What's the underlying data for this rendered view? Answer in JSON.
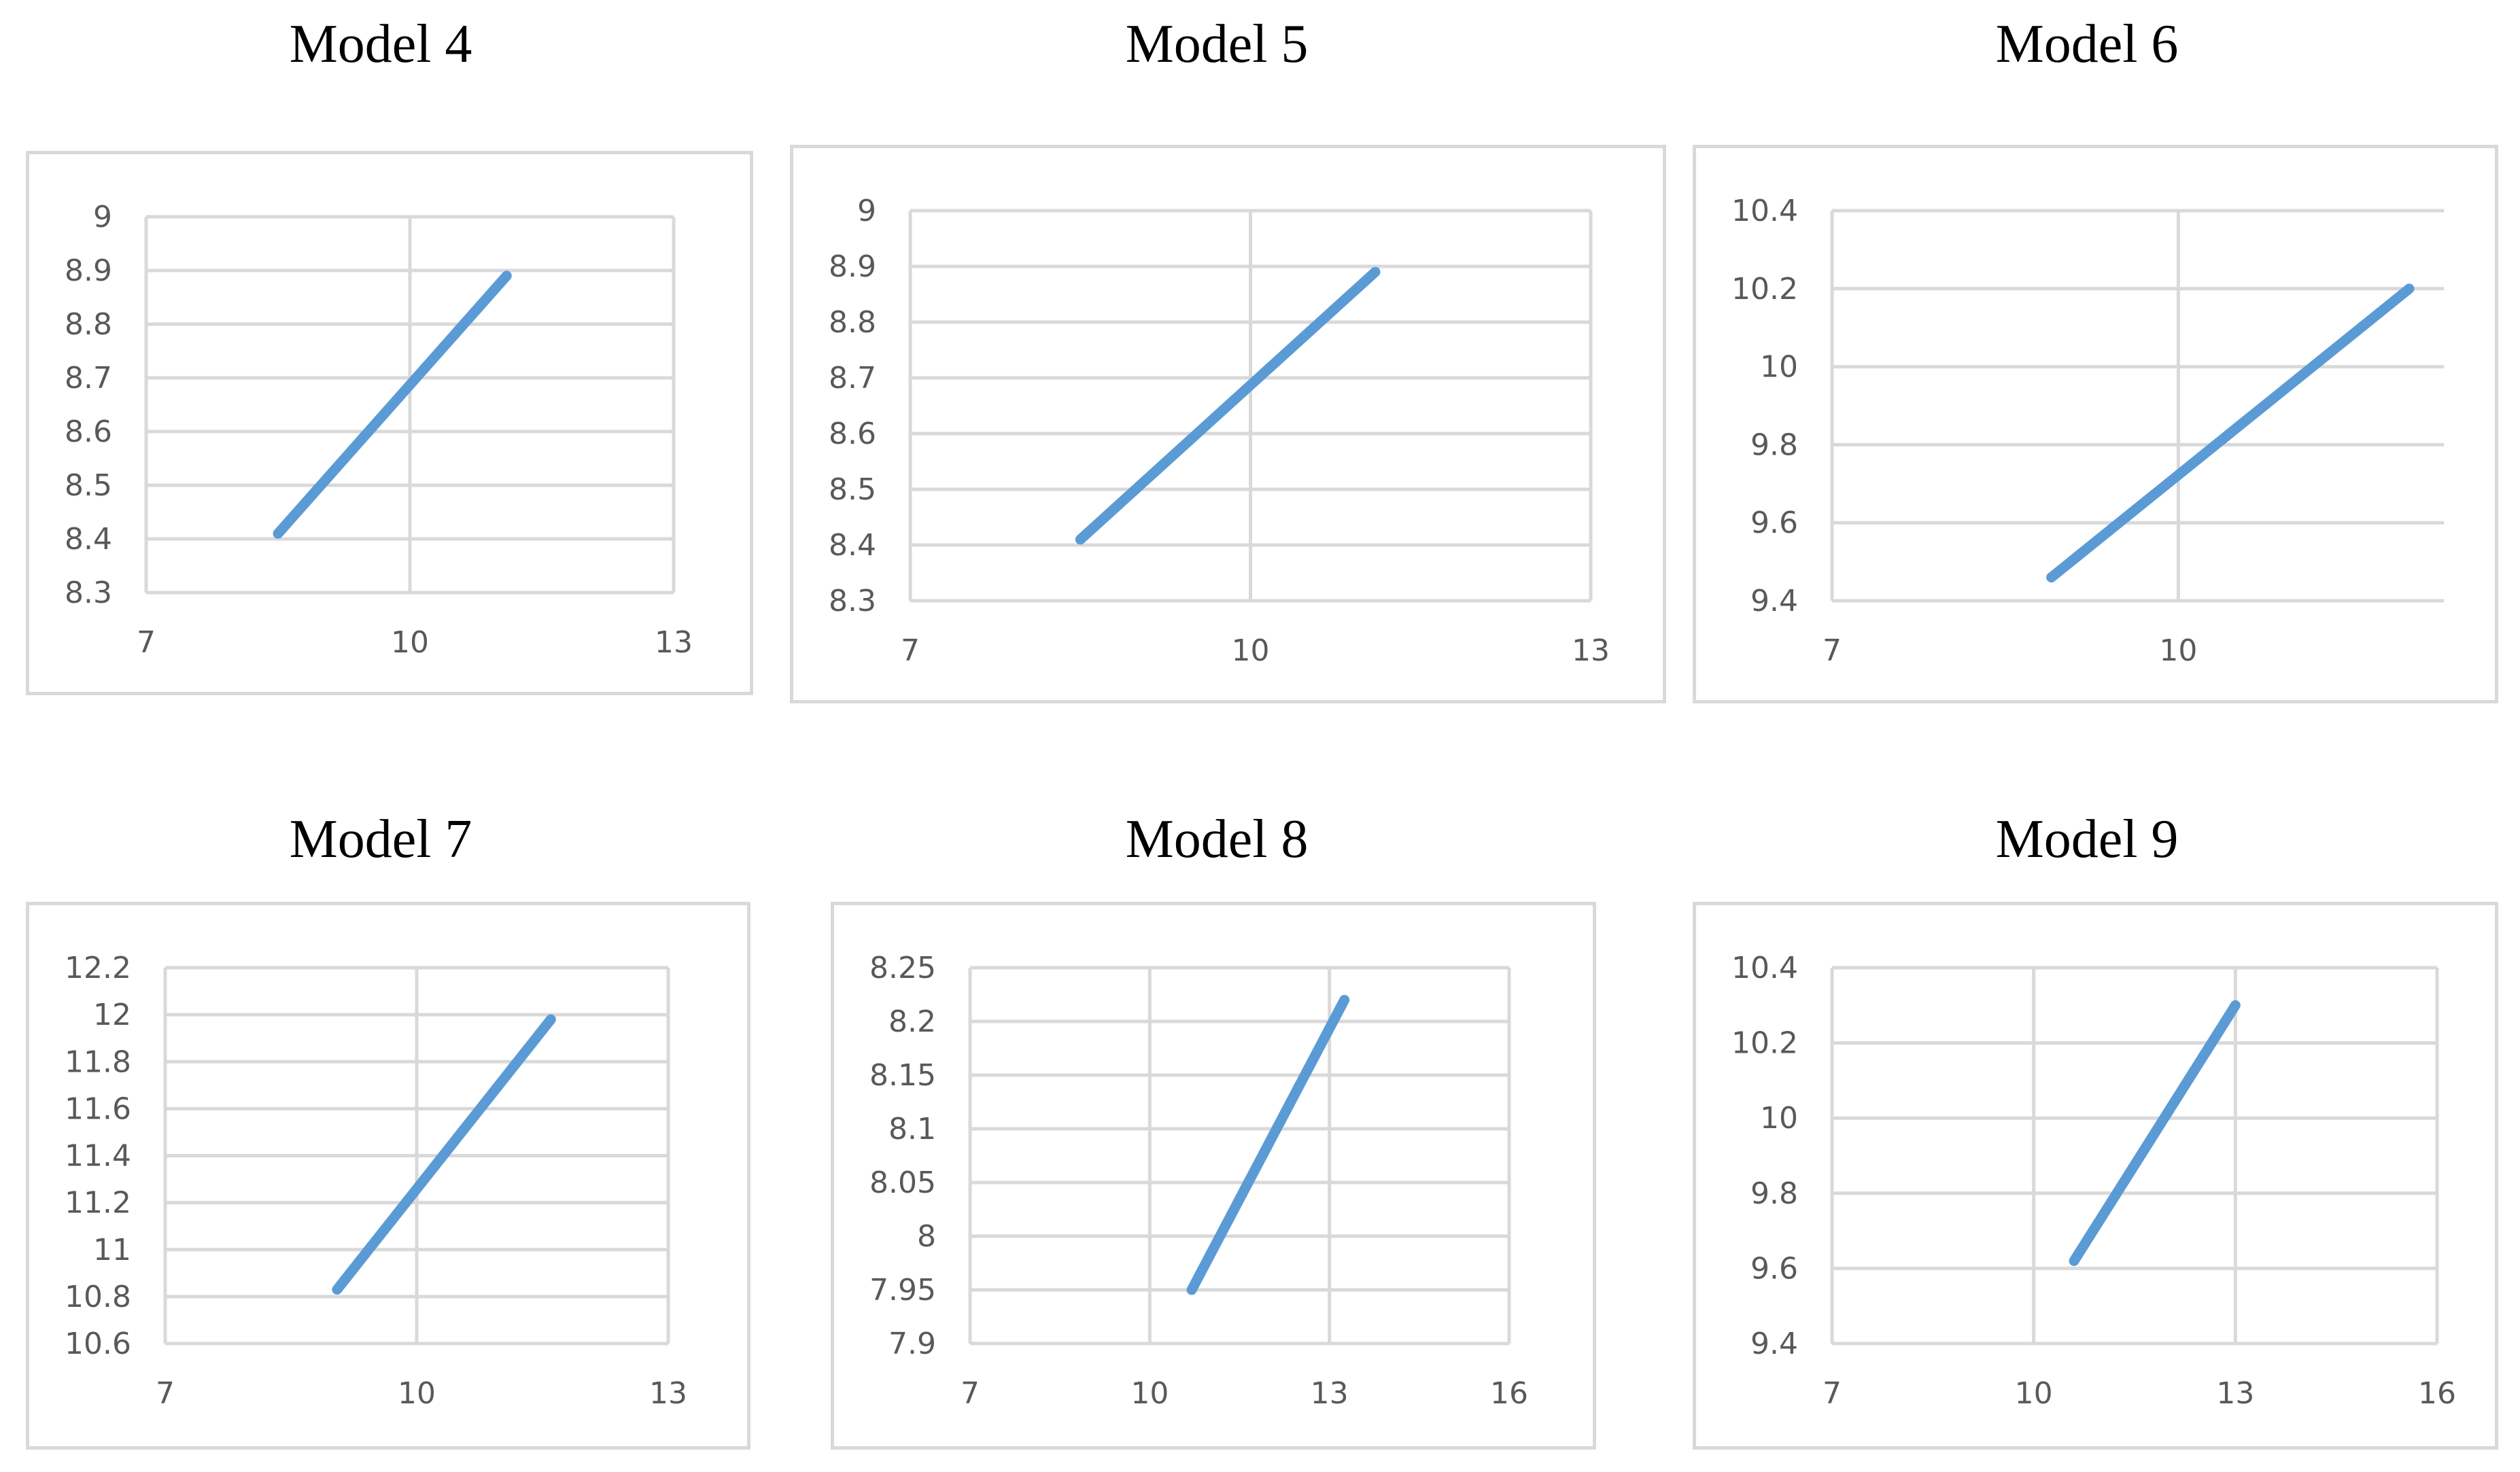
{
  "colors": {
    "series": "#5b9bd5",
    "grid": "#d9d9d9",
    "frame": "#d9d9d9",
    "tick_text": "#595959"
  },
  "chart_data": [
    {
      "type": "line",
      "title": "Model 4",
      "xlim": [
        7,
        13
      ],
      "ylim": [
        8.3,
        9
      ],
      "x_ticks": [
        7,
        10,
        13
      ],
      "y_ticks": [
        "8.3",
        "8.4",
        "8.5",
        "8.6",
        "8.7",
        "8.8",
        "8.9",
        "9"
      ],
      "grid": true,
      "legend": "none",
      "series": [
        {
          "x": [
            8.5,
            11.1
          ],
          "y": [
            8.41,
            8.89
          ]
        }
      ]
    },
    {
      "type": "line",
      "title": "Model 5",
      "xlim": [
        7,
        13
      ],
      "ylim": [
        8.3,
        9
      ],
      "x_ticks": [
        7,
        10,
        13
      ],
      "y_ticks": [
        "8.3",
        "8.4",
        "8.5",
        "8.6",
        "8.7",
        "8.8",
        "8.9",
        "9"
      ],
      "grid": true,
      "legend": "none",
      "series": [
        {
          "x": [
            8.5,
            11.1
          ],
          "y": [
            8.41,
            8.89
          ]
        }
      ]
    },
    {
      "type": "line",
      "title": "Model 6",
      "xlim": [
        7,
        12.3
      ],
      "ylim": [
        9.4,
        10.4
      ],
      "x_ticks": [
        7,
        10
      ],
      "y_ticks": [
        "9.4",
        "9.6",
        "9.8",
        "10",
        "10.2",
        "10.4"
      ],
      "grid": true,
      "legend": "none",
      "series": [
        {
          "x": [
            8.9,
            12.0
          ],
          "y": [
            9.46,
            10.2
          ]
        }
      ]
    },
    {
      "type": "line",
      "title": "Model 7",
      "xlim": [
        7,
        13
      ],
      "ylim": [
        10.6,
        12.2
      ],
      "x_ticks": [
        7,
        10,
        13
      ],
      "y_ticks": [
        "10.6",
        "10.8",
        "11",
        "11.2",
        "11.4",
        "11.6",
        "11.8",
        "12",
        "12.2"
      ],
      "grid": true,
      "legend": "none",
      "series": [
        {
          "x": [
            9.05,
            11.6
          ],
          "y": [
            10.83,
            11.98
          ]
        }
      ]
    },
    {
      "type": "line",
      "title": "Model 8",
      "xlim": [
        7,
        16
      ],
      "ylim": [
        7.9,
        8.25
      ],
      "x_ticks": [
        7,
        10,
        13,
        16
      ],
      "y_ticks": [
        "7.9",
        "7.95",
        "8",
        "8.05",
        "8.1",
        "8.15",
        "8.2",
        "8.25"
      ],
      "grid": true,
      "legend": "none",
      "series": [
        {
          "x": [
            10.7,
            13.25
          ],
          "y": [
            7.95,
            8.22
          ]
        }
      ]
    },
    {
      "type": "line",
      "title": "Model 9",
      "xlim": [
        7,
        16
      ],
      "ylim": [
        9.4,
        10.4
      ],
      "x_ticks": [
        7,
        10,
        13,
        16
      ],
      "y_ticks": [
        "9.4",
        "9.6",
        "9.8",
        "10",
        "10.2",
        "10.4"
      ],
      "grid": true,
      "legend": "none",
      "series": [
        {
          "x": [
            10.6,
            13.0
          ],
          "y": [
            9.62,
            10.3
          ]
        }
      ]
    }
  ]
}
